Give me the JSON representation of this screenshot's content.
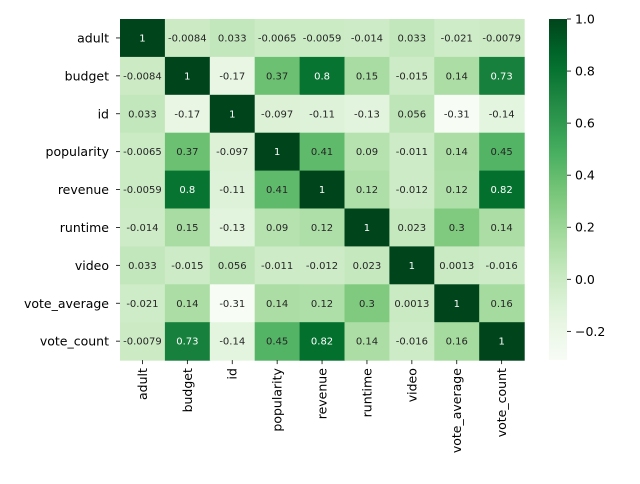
{
  "chart_data": {
    "type": "heatmap",
    "rows": [
      "adult",
      "budget",
      "id",
      "popularity",
      "revenue",
      "runtime",
      "video",
      "vote_average",
      "vote_count"
    ],
    "columns": [
      "adult",
      "budget",
      "id",
      "popularity",
      "revenue",
      "runtime",
      "video",
      "vote_average",
      "vote_count"
    ],
    "values": [
      [
        1,
        -0.0084,
        0.033,
        -0.0065,
        -0.0059,
        -0.014,
        0.033,
        -0.021,
        -0.0079
      ],
      [
        -0.0084,
        1,
        -0.17,
        0.37,
        0.8,
        0.15,
        -0.015,
        0.14,
        0.73
      ],
      [
        0.033,
        -0.17,
        1,
        -0.097,
        -0.11,
        -0.13,
        0.056,
        -0.31,
        -0.14
      ],
      [
        -0.0065,
        0.37,
        -0.097,
        1,
        0.41,
        0.09,
        -0.011,
        0.14,
        0.45
      ],
      [
        -0.0059,
        0.8,
        -0.11,
        0.41,
        1,
        0.12,
        -0.012,
        0.12,
        0.82
      ],
      [
        -0.014,
        0.15,
        -0.13,
        0.09,
        0.12,
        1,
        0.023,
        0.3,
        0.14
      ],
      [
        0.033,
        -0.015,
        0.056,
        -0.011,
        -0.012,
        0.023,
        1,
        0.0013,
        -0.016
      ],
      [
        -0.021,
        0.14,
        -0.31,
        0.14,
        0.12,
        0.3,
        0.0013,
        1,
        0.16
      ],
      [
        -0.0079,
        0.73,
        -0.14,
        0.45,
        0.82,
        0.14,
        -0.016,
        0.16,
        1
      ]
    ],
    "labels": [
      [
        "1",
        "-0.0084",
        "0.033",
        "-0.0065",
        "-0.0059",
        "-0.014",
        "0.033",
        "-0.021",
        "-0.0079"
      ],
      [
        "-0.0084",
        "1",
        "-0.17",
        "0.37",
        "0.8",
        "0.15",
        "-0.015",
        "0.14",
        "0.73"
      ],
      [
        "0.033",
        "-0.17",
        "1",
        "-0.097",
        "-0.11",
        "-0.13",
        "0.056",
        "-0.31",
        "-0.14"
      ],
      [
        "-0.0065",
        "0.37",
        "-0.097",
        "1",
        "0.41",
        "0.09",
        "-0.011",
        "0.14",
        "0.45"
      ],
      [
        "-0.0059",
        "0.8",
        "-0.11",
        "0.41",
        "1",
        "0.12",
        "-0.012",
        "0.12",
        "0.82"
      ],
      [
        "-0.014",
        "0.15",
        "-0.13",
        "0.09",
        "0.12",
        "1",
        "0.023",
        "0.3",
        "0.14"
      ],
      [
        "0.033",
        "-0.015",
        "0.056",
        "-0.011",
        "-0.012",
        "0.023",
        "1",
        "0.0013",
        "-0.016"
      ],
      [
        "-0.021",
        "0.14",
        "-0.31",
        "0.14",
        "0.12",
        "0.3",
        "0.0013",
        "1",
        "0.16"
      ],
      [
        "-0.0079",
        "0.73",
        "-0.14",
        "0.45",
        "0.82",
        "0.14",
        "-0.016",
        "0.16",
        "1"
      ]
    ],
    "colormap": "Greens",
    "vmin": -0.31,
    "vmax": 1.0,
    "colorbar_ticks": [
      1.0,
      0.8,
      0.6,
      0.4,
      0.2,
      0.0,
      -0.2
    ],
    "colorbar_tick_labels": [
      "1.0",
      "0.8",
      "0.6",
      "0.4",
      "0.2",
      "0.0",
      "−0.2"
    ],
    "title": "",
    "xlabel": "",
    "ylabel": ""
  }
}
